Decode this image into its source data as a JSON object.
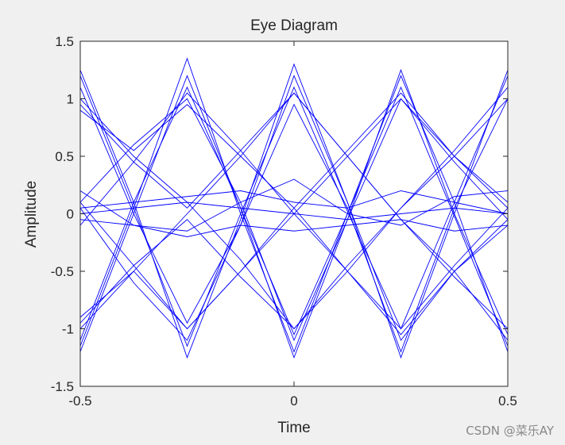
{
  "colors": {
    "figure_background": "#f0f0f0",
    "axes_background": "#ffffff",
    "trace": "#0000ff",
    "axis": "#262626",
    "text": "#262626"
  },
  "chart_data": {
    "type": "line",
    "title": "Eye Diagram",
    "xlabel": "Time",
    "ylabel": "Amplitude",
    "xlim": [
      -0.5,
      0.5
    ],
    "ylim": [
      -1.5,
      1.5
    ],
    "xticks": [
      -0.5,
      0,
      0.5
    ],
    "xtick_labels": [
      "-0.5",
      "0",
      "0.5"
    ],
    "yticks": [
      -1.5,
      -1,
      -0.5,
      0,
      0.5,
      1,
      1.5
    ],
    "ytick_labels": [
      "-1.5",
      "-1",
      "-0.5",
      "0",
      "0.5",
      "1",
      "1.5"
    ],
    "grid": false,
    "box": true,
    "sample_times": [
      -0.5,
      -0.375,
      -0.25,
      -0.125,
      0,
      0.125,
      0.25,
      0.375,
      0.5
    ],
    "series": [
      {
        "values": [
          1.2,
          0.05,
          -1.15,
          0.0,
          1.1,
          0.02,
          -1.0,
          0.1,
          1.2
        ]
      },
      {
        "values": [
          -1.2,
          0.0,
          1.2,
          0.05,
          -1.05,
          0.0,
          1.1,
          -0.02,
          -1.15
        ]
      },
      {
        "values": [
          0.1,
          0.6,
          1.0,
          0.1,
          -1.1,
          -0.05,
          1.0,
          0.5,
          0.05
        ]
      },
      {
        "values": [
          0.05,
          -0.6,
          -1.1,
          -0.1,
          1.2,
          0.1,
          -1.1,
          -0.5,
          -0.05
        ]
      },
      {
        "values": [
          1.0,
          0.5,
          0.1,
          -0.4,
          -1.0,
          -0.45,
          0.05,
          0.55,
          1.1
        ]
      },
      {
        "values": [
          -1.0,
          -0.5,
          0.0,
          0.5,
          1.05,
          0.5,
          -0.05,
          -0.5,
          -1.1
        ]
      },
      {
        "values": [
          0.0,
          0.05,
          0.1,
          0.05,
          0.0,
          -0.05,
          0.0,
          0.05,
          0.0
        ]
      },
      {
        "values": [
          0.2,
          -0.1,
          -0.15,
          0.1,
          0.3,
          0.0,
          -0.1,
          0.15,
          0.2
        ]
      },
      {
        "values": [
          1.25,
          0.1,
          -1.25,
          -0.05,
          1.3,
          0.1,
          -1.25,
          0.0,
          1.25
        ]
      },
      {
        "values": [
          -1.15,
          0.05,
          1.35,
          0.0,
          -1.2,
          0.0,
          1.2,
          0.1,
          -1.2
        ]
      },
      {
        "values": [
          0.95,
          0.45,
          0.05,
          0.55,
          1.05,
          0.5,
          -0.05,
          -0.55,
          -1.0
        ]
      },
      {
        "values": [
          -0.95,
          -0.45,
          -0.05,
          -0.55,
          -1.0,
          -0.5,
          0.05,
          0.5,
          1.0
        ]
      },
      {
        "values": [
          0.1,
          -0.45,
          -1.0,
          -0.5,
          0.05,
          0.55,
          1.05,
          0.5,
          0.1
        ]
      },
      {
        "values": [
          -0.1,
          0.45,
          1.05,
          0.55,
          0.0,
          -0.5,
          -1.05,
          -0.5,
          -0.1
        ]
      },
      {
        "values": [
          1.1,
          0.0,
          -0.95,
          -0.1,
          0.95,
          0.05,
          -1.2,
          0.05,
          1.0
        ]
      },
      {
        "values": [
          -1.1,
          0.1,
          1.1,
          0.05,
          -1.25,
          -0.05,
          1.25,
          0.0,
          -1.05
        ]
      },
      {
        "values": [
          0.05,
          0.1,
          0.15,
          0.2,
          0.1,
          0.05,
          0.2,
          0.1,
          0.0
        ]
      },
      {
        "values": [
          -0.05,
          -0.1,
          -0.2,
          -0.1,
          -0.15,
          -0.1,
          -0.05,
          -0.15,
          -0.1
        ]
      },
      {
        "values": [
          0.9,
          0.55,
          0.95,
          0.5,
          0.05,
          -0.5,
          -1.0,
          -0.45,
          0.05
        ]
      },
      {
        "values": [
          -0.9,
          -0.5,
          -1.0,
          -0.5,
          0.0,
          0.5,
          1.0,
          0.45,
          -0.05
        ]
      }
    ]
  },
  "watermark": "CSDN @菜乐AY"
}
